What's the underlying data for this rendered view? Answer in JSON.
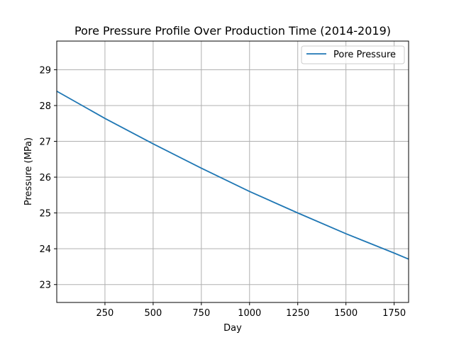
{
  "chart_data": {
    "type": "line",
    "title": "Pore Pressure Profile Over Production Time (2014-2019)",
    "xlabel": "Day",
    "ylabel": "Pressure (MPa)",
    "xlim": [
      0,
      1825
    ],
    "ylim": [
      22.5,
      29.8
    ],
    "xticks": [
      250,
      500,
      750,
      1000,
      1250,
      1500,
      1750
    ],
    "yticks": [
      23,
      24,
      25,
      26,
      27,
      28,
      29
    ],
    "grid": true,
    "legend_position": "top-right",
    "series": [
      {
        "name": "Pore Pressure",
        "color": "#1f77b4",
        "x": [
          0,
          250,
          500,
          750,
          1000,
          1250,
          1500,
          1750,
          1825
        ],
        "y": [
          28.4,
          27.64,
          26.93,
          26.25,
          25.6,
          25.0,
          24.42,
          23.88,
          23.71
        ]
      }
    ]
  }
}
